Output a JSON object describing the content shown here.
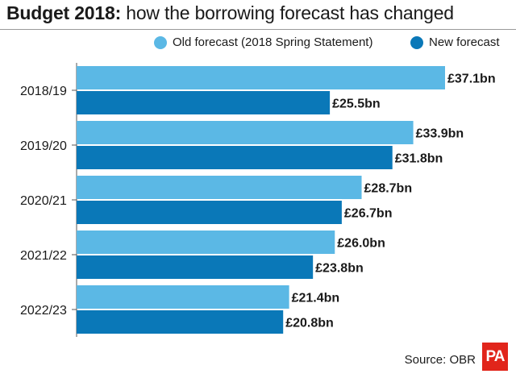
{
  "title": {
    "bold": "Budget 2018:",
    "rest": " how the borrowing forecast has changed"
  },
  "legend": {
    "old": {
      "label": "Old forecast (2018 Spring Statement)",
      "color": "#5bb8e5"
    },
    "new": {
      "label": "New forecast",
      "color": "#0a78b8"
    }
  },
  "source": "Source: OBR",
  "logo": "PA",
  "chart_data": {
    "type": "bar",
    "orientation": "horizontal",
    "categories": [
      "2018/19",
      "2019/20",
      "2020/21",
      "2021/22",
      "2022/23"
    ],
    "series": [
      {
        "name": "Old forecast (2018 Spring Statement)",
        "values": [
          37.1,
          33.9,
          28.7,
          26.0,
          21.4
        ],
        "labels": [
          "£37.1bn",
          "£33.9bn",
          "£28.7bn",
          "£26.0bn",
          "£21.4bn"
        ],
        "color": "#5bb8e5"
      },
      {
        "name": "New forecast",
        "values": [
          25.5,
          31.8,
          26.7,
          23.8,
          20.8
        ],
        "labels": [
          "£25.5bn",
          "£31.8bn",
          "£26.7bn",
          "£23.8bn",
          "£20.8bn"
        ],
        "color": "#0a78b8"
      }
    ],
    "title": "Budget 2018: how the borrowing forecast has changed",
    "unit": "£bn",
    "xlim": [
      0,
      37.1
    ],
    "grid": false,
    "legend_position": "top-right"
  }
}
